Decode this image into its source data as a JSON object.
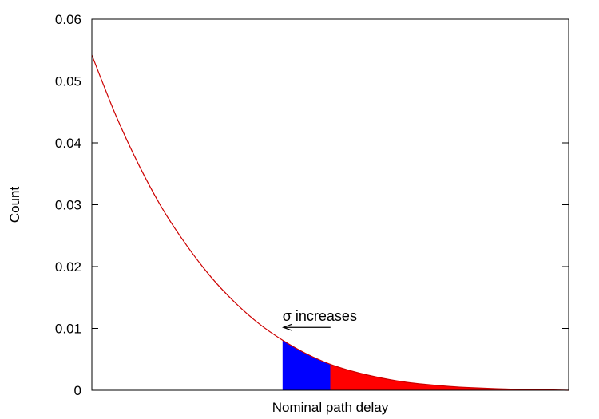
{
  "chart_data": {
    "type": "area",
    "title": "",
    "xlabel": "Nominal path delay",
    "ylabel": "Count",
    "xlim": [
      0,
      1
    ],
    "ylim": [
      0,
      0.06
    ],
    "yticks": [
      "0",
      "0.01",
      "0.02",
      "0.03",
      "0.04",
      "0.05",
      "0.06"
    ],
    "xticks": [],
    "grid": false,
    "series": [
      {
        "x": [
          0.0,
          0.05,
          0.1,
          0.15,
          0.2,
          0.25,
          0.3,
          0.35,
          0.4,
          0.45,
          0.5,
          0.55,
          0.6,
          0.65,
          0.7,
          0.75,
          0.8,
          0.85,
          0.9,
          0.95,
          1.0
        ],
        "y": [
          0.0542,
          0.0445,
          0.0362,
          0.0291,
          0.0233,
          0.0183,
          0.0142,
          0.0108,
          0.0081,
          0.0059,
          0.0042,
          0.003,
          0.0021,
          0.0014,
          0.00095,
          0.00062,
          0.0004,
          0.00025,
          0.00014,
          7e-05,
          0.0
        ]
      }
    ],
    "shaded_regions": [
      {
        "x_start": 0.4,
        "x_end": 0.5,
        "color": "#0000ff"
      },
      {
        "x_start": 0.5,
        "x_end": 1.0,
        "color": "#ff0000"
      }
    ],
    "line_color": "#cc0000",
    "annotation": {
      "text": "σ increases",
      "arrow_direction": "left"
    }
  }
}
